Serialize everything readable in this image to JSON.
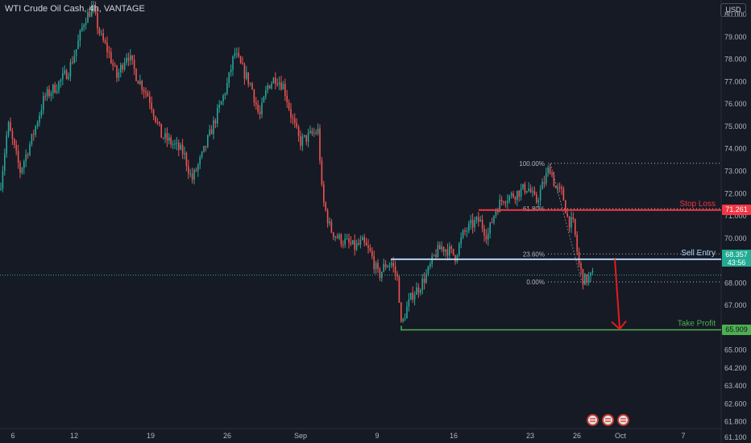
{
  "header": {
    "title": "WTI Crude Oil Cash, 4h, VANTAGE",
    "currency_button": "USD"
  },
  "colors": {
    "background": "#161a25",
    "up_candle": "#26a69a",
    "down_candle": "#ef5350",
    "stop_loss": "#f23645",
    "sell_entry": "#b2d4f5",
    "take_profit": "#4caf50",
    "arrow": "#e51c1c"
  },
  "chart_data": {
    "type": "candlestick",
    "title": "WTI Crude Oil Cash, 4h, VANTAGE",
    "y_axis": {
      "side": "right",
      "ylim": [
        60.85,
        80.65
      ],
      "ticks": [
        61.1,
        61.8,
        62.6,
        63.4,
        64.2,
        65.0,
        66.0,
        67.0,
        68.0,
        69.0,
        70.0,
        71.0,
        72.0,
        73.0,
        74.0,
        75.0,
        76.0,
        77.0,
        78.0,
        79.0,
        80.0
      ],
      "tick_labels": [
        "61.100",
        "61.800",
        "62.600",
        "63.400",
        "64.200",
        "65.000",
        "66.000",
        "67.000",
        "68.000",
        "69.000",
        "70.000",
        "71.000",
        "72.000",
        "73.000",
        "74.000",
        "75.000",
        "76.000",
        "77.000",
        "78.000",
        "79.000",
        "80.000"
      ]
    },
    "x_axis": {
      "tick_labels": [
        "6",
        "12",
        "19",
        "26",
        "Sep",
        "9",
        "16",
        "23",
        "26",
        "Oct",
        "7"
      ]
    },
    "price_path": [
      [
        0,
        72.2
      ],
      [
        10,
        75.1
      ],
      [
        25,
        73.0
      ],
      [
        40,
        74.5
      ],
      [
        55,
        76.3
      ],
      [
        70,
        76.8
      ],
      [
        85,
        77.5
      ],
      [
        95,
        78.5
      ],
      [
        105,
        79.8
      ],
      [
        115,
        80.3
      ],
      [
        125,
        79.0
      ],
      [
        135,
        78.3
      ],
      [
        145,
        77.2
      ],
      [
        158,
        78.3
      ],
      [
        170,
        77.2
      ],
      [
        185,
        76.3
      ],
      [
        200,
        74.6
      ],
      [
        215,
        74.2
      ],
      [
        228,
        73.8
      ],
      [
        238,
        72.6
      ],
      [
        250,
        73.6
      ],
      [
        262,
        74.8
      ],
      [
        275,
        76.1
      ],
      [
        283,
        77.0
      ],
      [
        291,
        78.3
      ],
      [
        300,
        77.6
      ],
      [
        312,
        76.8
      ],
      [
        322,
        75.4
      ],
      [
        332,
        76.8
      ],
      [
        342,
        77.2
      ],
      [
        352,
        76.8
      ],
      [
        362,
        75.4
      ],
      [
        372,
        74.3
      ],
      [
        385,
        74.6
      ],
      [
        395,
        74.8
      ],
      [
        400,
        71.8
      ],
      [
        410,
        70.4
      ],
      [
        420,
        70.0
      ],
      [
        430,
        69.8
      ],
      [
        440,
        69.6
      ],
      [
        450,
        69.8
      ],
      [
        460,
        69.3
      ],
      [
        470,
        68.3
      ],
      [
        478,
        68.8
      ],
      [
        486,
        68.9
      ],
      [
        494,
        68.1
      ],
      [
        498,
        66.0
      ],
      [
        504,
        66.8
      ],
      [
        512,
        67.5
      ],
      [
        520,
        67.8
      ],
      [
        530,
        68.4
      ],
      [
        540,
        69.3
      ],
      [
        548,
        69.6
      ],
      [
        555,
        69.5
      ],
      [
        565,
        69.2
      ],
      [
        575,
        70.2
      ],
      [
        585,
        70.6
      ],
      [
        595,
        70.8
      ],
      [
        605,
        70.1
      ],
      [
        615,
        71.3
      ],
      [
        625,
        71.8
      ],
      [
        635,
        71.9
      ],
      [
        645,
        72.1
      ],
      [
        655,
        72.3
      ],
      [
        665,
        71.6
      ],
      [
        675,
        72.5
      ],
      [
        682,
        73.2
      ],
      [
        690,
        72.2
      ],
      [
        698,
        72.0
      ],
      [
        705,
        70.8
      ],
      [
        712,
        70.6
      ],
      [
        718,
        68.9
      ],
      [
        724,
        68.1
      ],
      [
        730,
        68.2
      ],
      [
        736,
        68.36
      ]
    ],
    "current_price": {
      "value": 68.357,
      "label": "68.357",
      "countdown": "43:56"
    },
    "fibonacci": {
      "high": 73.35,
      "low": 68.05,
      "levels": [
        {
          "ratio": 1.0,
          "label": "100.00%"
        },
        {
          "ratio": 0.618,
          "label": "61.80%"
        },
        {
          "ratio": 0.236,
          "label": "23.60%"
        },
        {
          "ratio": 0.0,
          "label": "0.00%"
        }
      ]
    },
    "annotations": [
      {
        "name": "Stop Loss",
        "value": 71.261,
        "value_label": "71.261"
      },
      {
        "name": "Sell Entry",
        "value": 69.064,
        "value_label": "69.064"
      },
      {
        "name": "Take Profit",
        "value": 65.909,
        "value_label": "65.909"
      }
    ],
    "arrow": {
      "from": 69.064,
      "to": 65.909
    }
  }
}
